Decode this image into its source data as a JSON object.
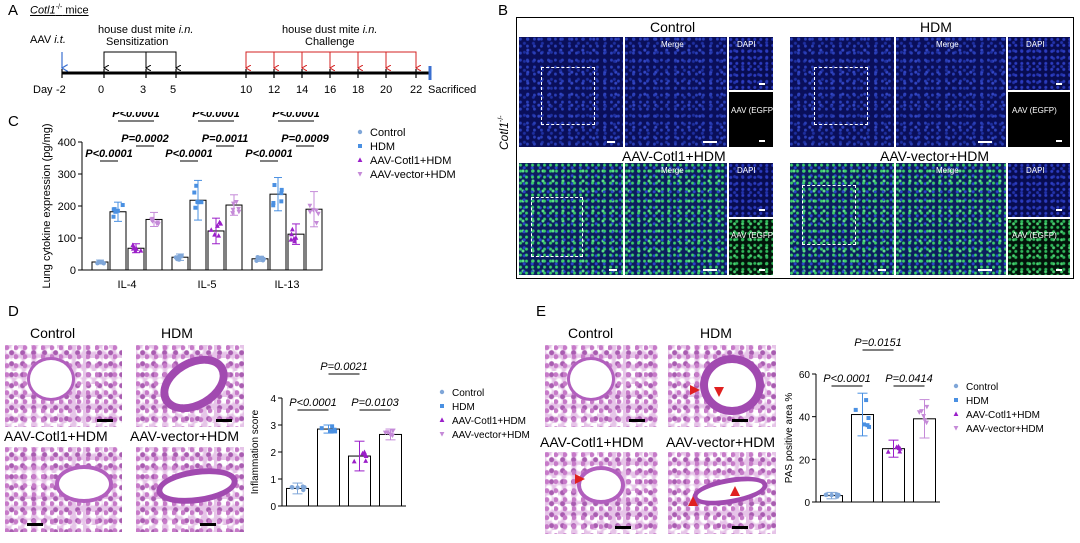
{
  "panels": {
    "A": "A",
    "B": "B",
    "C": "C",
    "D": "D",
    "E": "E"
  },
  "timeline": {
    "mice_label": "Cotl1",
    "mice_sup": "-/-",
    "mice_suffix": " mice",
    "aav_label": "AAV",
    "aav_route": "i.t.",
    "hdm_label": "house dust mite",
    "hdm_route": "i.n.",
    "sensitization": "Sensitization",
    "challenge": "Challenge",
    "day_label": "Day",
    "days": [
      "-2",
      "0",
      "3",
      "5",
      "10",
      "12",
      "14",
      "16",
      "18",
      "20",
      "22"
    ],
    "sacrificed": "Sacrificed"
  },
  "panel_b": {
    "row_label": "Cotl1",
    "row_sup": "-/-",
    "groups": [
      "Control",
      "HDM",
      "AAV-Cotl1+HDM",
      "AAV-vector+HDM"
    ],
    "merge": "Merge",
    "dapi": "DAPI",
    "aav_egfp": "AAV (EGFP)"
  },
  "panel_d": {
    "groups": [
      "Control",
      "HDM",
      "AAV-Cotl1+HDM",
      "AAV-vector+HDM"
    ]
  },
  "panel_e": {
    "groups": [
      "Control",
      "HDM",
      "AAV-Cotl1+HDM",
      "AAV-vector+HDM"
    ]
  },
  "chart_data": [
    {
      "type": "bar",
      "panel": "C",
      "ylabel": "Lung cytokine expression (pg/mg)",
      "ylim": [
        0,
        400
      ],
      "yticks": [
        0,
        100,
        200,
        300,
        400
      ],
      "categories": [
        "IL-4",
        "IL-5",
        "IL-13"
      ],
      "series": [
        {
          "name": "Control",
          "color": "#7fa6d8",
          "values": [
            25,
            40,
            35
          ],
          "err": [
            6,
            10,
            8
          ]
        },
        {
          "name": "HDM",
          "color": "#4a90e2",
          "values": [
            182,
            218,
            237
          ],
          "err": [
            30,
            62,
            52
          ]
        },
        {
          "name": "AAV-Cotl1+HDM",
          "color": "#9b1fc9",
          "values": [
            68,
            122,
            112
          ],
          "err": [
            14,
            40,
            32
          ]
        },
        {
          "name": "AAV-vector+HDM",
          "color": "#c58ad8",
          "values": [
            158,
            203,
            190
          ],
          "err": [
            22,
            32,
            55
          ]
        }
      ],
      "pvalues": [
        "P<0.0001",
        "P<0.0001",
        "P=0.0002",
        "P<0.0001",
        "P<0.0001",
        "P=0.0011",
        "P<0.0001",
        "P<0.0001",
        "P=0.0009"
      ],
      "legend_position": "right"
    },
    {
      "type": "bar",
      "panel": "D",
      "ylabel": "Inflammation score",
      "ylim": [
        0,
        4
      ],
      "yticks": [
        0,
        1,
        2,
        3,
        4
      ],
      "categories": [
        "Control",
        "HDM",
        "AAV-Cotl1+HDM",
        "AAV-vector+HDM"
      ],
      "series": [
        {
          "name": "Control",
          "color": "#7fa6d8",
          "value": 0.65,
          "err": 0.2
        },
        {
          "name": "HDM",
          "color": "#4a90e2",
          "value": 2.85,
          "err": 0.15
        },
        {
          "name": "AAV-Cotl1+HDM",
          "color": "#9b1fc9",
          "value": 1.85,
          "err": 0.55
        },
        {
          "name": "AAV-vector+HDM",
          "color": "#c58ad8",
          "value": 2.65,
          "err": 0.2
        }
      ],
      "pvalues": [
        "P=0.0021",
        "P<0.0001",
        "P=0.0103"
      ],
      "legend_position": "right"
    },
    {
      "type": "bar",
      "panel": "E",
      "ylabel": "PAS positive area %",
      "ylim": [
        0,
        60
      ],
      "yticks": [
        0,
        20,
        40,
        60
      ],
      "categories": [
        "Control",
        "HDM",
        "AAV-Cotl1+HDM",
        "AAV-vector+HDM"
      ],
      "series": [
        {
          "name": "Control",
          "color": "#7fa6d8",
          "value": 3,
          "err": 1.5
        },
        {
          "name": "HDM",
          "color": "#4a90e2",
          "value": 41,
          "err": 10
        },
        {
          "name": "AAV-Cotl1+HDM",
          "color": "#9b1fc9",
          "value": 25,
          "err": 4
        },
        {
          "name": "AAV-vector+HDM",
          "color": "#c58ad8",
          "value": 39,
          "err": 9
        }
      ],
      "pvalues": [
        "P=0.0151",
        "P<0.0001",
        "P=0.0414"
      ],
      "legend_position": "right"
    }
  ]
}
